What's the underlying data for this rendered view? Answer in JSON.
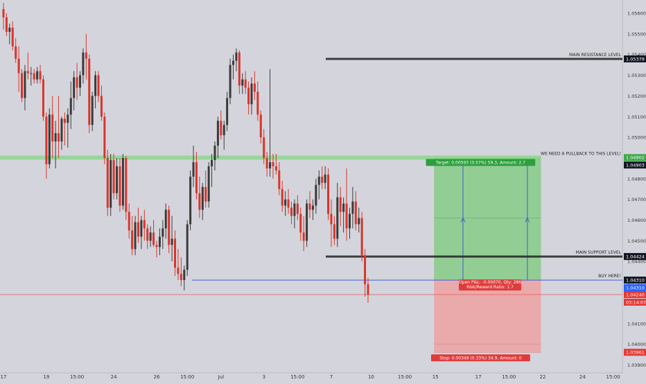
{
  "chart_data": {
    "type": "candlestick",
    "symbol_note": "",
    "ylim": [
      1.0385,
      1.0565
    ],
    "y_ticks": [
      1.056,
      1.055,
      1.054,
      1.053,
      1.052,
      1.051,
      1.05,
      1.049,
      1.048,
      1.047,
      1.046,
      1.045,
      1.044,
      1.043,
      1.042,
      1.041,
      1.04,
      1.039
    ],
    "y_tick_labels": [
      "1.05600",
      "1.05500",
      "1.05400",
      "1.05300",
      "1.05200",
      "1.05100",
      "1.05000",
      "1.04900",
      "1.04800",
      "1.04700",
      "1.04600",
      "1.04500",
      "1.04400",
      "1.04300",
      "1.04200",
      "1.04100",
      "1.04000",
      "1.03900"
    ],
    "x_tick_labels": [
      {
        "label": "17",
        "bar": 0
      },
      {
        "label": "19",
        "bar": 14
      },
      {
        "label": "15:00",
        "bar": 24
      },
      {
        "label": "24",
        "bar": 36
      },
      {
        "label": "26",
        "bar": 50
      },
      {
        "label": "15:00",
        "bar": 60
      },
      {
        "label": "Jul",
        "bar": 71
      },
      {
        "label": "3",
        "bar": 85
      },
      {
        "label": "15:00",
        "bar": 96
      },
      {
        "label": "7",
        "bar": 107
      },
      {
        "label": "10",
        "bar": 120
      },
      {
        "label": "15:00",
        "bar": 131
      },
      {
        "label": "15",
        "bar": 141
      },
      {
        "label": "17",
        "bar": 155
      },
      {
        "label": "15:00",
        "bar": 165
      },
      {
        "label": "22",
        "bar": 176
      },
      {
        "label": "24",
        "bar": 189
      },
      {
        "label": "15:00",
        "bar": 199
      }
    ],
    "candles": [
      [
        1.0562,
        1.0565,
        1.0552,
        1.0558
      ],
      [
        1.0558,
        1.056,
        1.0549,
        1.0551
      ],
      [
        1.0551,
        1.0555,
        1.0545,
        1.0553
      ],
      [
        1.0553,
        1.0556,
        1.0542,
        1.0544
      ],
      [
        1.0544,
        1.0548,
        1.0536,
        1.0538
      ],
      [
        1.0538,
        1.0544,
        1.0522,
        1.0531
      ],
      [
        1.0531,
        1.0533,
        1.0517,
        1.0519
      ],
      [
        1.0519,
        1.0535,
        1.0513,
        1.0532
      ],
      [
        1.0532,
        1.0541,
        1.0528,
        1.0531
      ],
      [
        1.0531,
        1.0534,
        1.0525,
        1.0531
      ],
      [
        1.0531,
        1.0533,
        1.0526,
        1.0528
      ],
      [
        1.0528,
        1.0534,
        1.0526,
        1.0532
      ],
      [
        1.0532,
        1.0535,
        1.0526,
        1.0528
      ],
      [
        1.0528,
        1.053,
        1.0508,
        1.051
      ],
      [
        1.051,
        1.0512,
        1.048,
        1.0487
      ],
      [
        1.0487,
        1.0514,
        1.0485,
        1.0511
      ],
      [
        1.0511,
        1.052,
        1.049,
        1.0498
      ],
      [
        1.0498,
        1.0508,
        1.0485,
        1.0502
      ],
      [
        1.0502,
        1.052,
        1.049,
        1.0498
      ],
      [
        1.0498,
        1.051,
        1.0494,
        1.0509
      ],
      [
        1.0509,
        1.0512,
        1.0496,
        1.0507
      ],
      [
        1.0507,
        1.0514,
        1.0495,
        1.0511
      ],
      [
        1.0511,
        1.0527,
        1.0504,
        1.0519
      ],
      [
        1.0519,
        1.0532,
        1.0513,
        1.0529
      ],
      [
        1.0529,
        1.0536,
        1.0518,
        1.0524
      ],
      [
        1.0524,
        1.0532,
        1.052,
        1.053
      ],
      [
        1.053,
        1.0543,
        1.0526,
        1.0541
      ],
      [
        1.0541,
        1.055,
        1.0528,
        1.0538
      ],
      [
        1.0538,
        1.054,
        1.0502,
        1.0506
      ],
      [
        1.0506,
        1.0522,
        1.0503,
        1.052
      ],
      [
        1.052,
        1.0532,
        1.0514,
        1.053
      ],
      [
        1.053,
        1.0532,
        1.0517,
        1.052
      ],
      [
        1.052,
        1.0525,
        1.0508,
        1.051
      ],
      [
        1.051,
        1.0512,
        1.0487,
        1.049
      ],
      [
        1.049,
        1.0494,
        1.0462,
        1.0466
      ],
      [
        1.0466,
        1.0492,
        1.0462,
        1.0489
      ],
      [
        1.0489,
        1.0492,
        1.047,
        1.0473
      ],
      [
        1.0473,
        1.049,
        1.047,
        1.0486
      ],
      [
        1.0486,
        1.049,
        1.0464,
        1.0467
      ],
      [
        1.0467,
        1.0492,
        1.0465,
        1.049
      ],
      [
        1.049,
        1.0491,
        1.046,
        1.0464
      ],
      [
        1.0464,
        1.0468,
        1.0451,
        1.0455
      ],
      [
        1.0455,
        1.0462,
        1.0443,
        1.0446
      ],
      [
        1.0446,
        1.0462,
        1.0443,
        1.0459
      ],
      [
        1.0459,
        1.0466,
        1.0449,
        1.0452
      ],
      [
        1.0452,
        1.0462,
        1.0446,
        1.046
      ],
      [
        1.046,
        1.0465,
        1.045,
        1.0456
      ],
      [
        1.0456,
        1.0458,
        1.0446,
        1.045
      ],
      [
        1.045,
        1.0457,
        1.0447,
        1.0454
      ],
      [
        1.0454,
        1.046,
        1.0447,
        1.0448
      ],
      [
        1.0448,
        1.045,
        1.0442,
        1.0447
      ],
      [
        1.0447,
        1.0456,
        1.0443,
        1.0452
      ],
      [
        1.0452,
        1.046,
        1.0446,
        1.0456
      ],
      [
        1.0456,
        1.0468,
        1.0451,
        1.0465
      ],
      [
        1.0465,
        1.0467,
        1.0444,
        1.0448
      ],
      [
        1.0448,
        1.0462,
        1.044,
        1.0451
      ],
      [
        1.0451,
        1.0455,
        1.0433,
        1.0437
      ],
      [
        1.0437,
        1.0446,
        1.0431,
        1.0434
      ],
      [
        1.0434,
        1.0442,
        1.0428,
        1.0431
      ],
      [
        1.0431,
        1.0438,
        1.0426,
        1.0436
      ],
      [
        1.0436,
        1.046,
        1.0433,
        1.0458
      ],
      [
        1.0458,
        1.0484,
        1.0455,
        1.0481
      ],
      [
        1.0481,
        1.0496,
        1.0476,
        1.0488
      ],
      [
        1.0488,
        1.0493,
        1.047,
        1.0473
      ],
      [
        1.0473,
        1.0481,
        1.0461,
        1.0465
      ],
      [
        1.0465,
        1.0478,
        1.046,
        1.0476
      ],
      [
        1.0476,
        1.0484,
        1.0466,
        1.0469
      ],
      [
        1.0469,
        1.0488,
        1.0466,
        1.0486
      ],
      [
        1.0486,
        1.0492,
        1.0476,
        1.0489
      ],
      [
        1.0489,
        1.0498,
        1.0484,
        1.0496
      ],
      [
        1.0496,
        1.051,
        1.049,
        1.0508
      ],
      [
        1.0508,
        1.0513,
        1.0499,
        1.0501
      ],
      [
        1.0501,
        1.0508,
        1.0494,
        1.0506
      ],
      [
        1.0506,
        1.0522,
        1.0503,
        1.0519
      ],
      [
        1.0519,
        1.0538,
        1.0516,
        1.0535
      ],
      [
        1.0535,
        1.054,
        1.0528,
        1.0537
      ],
      [
        1.0537,
        1.0543,
        1.0532,
        1.0541
      ],
      [
        1.0541,
        1.0542,
        1.0521,
        1.0525
      ],
      [
        1.0525,
        1.0531,
        1.0521,
        1.0528
      ],
      [
        1.0528,
        1.0532,
        1.0521,
        1.0524
      ],
      [
        1.0524,
        1.0527,
        1.0511,
        1.0516
      ],
      [
        1.0516,
        1.0529,
        1.0511,
        1.0526
      ],
      [
        1.0526,
        1.0532,
        1.0518,
        1.0522
      ],
      [
        1.0522,
        1.0527,
        1.0508,
        1.0511
      ],
      [
        1.0511,
        1.0513,
        1.0497,
        1.05
      ],
      [
        1.05,
        1.0504,
        1.0487,
        1.049
      ],
      [
        1.049,
        1.0493,
        1.0481,
        1.0485
      ],
      [
        1.0485,
        1.0533,
        1.0481,
        1.0488
      ],
      [
        1.0488,
        1.0492,
        1.048,
        1.0486
      ],
      [
        1.0486,
        1.0492,
        1.0482,
        1.0484
      ],
      [
        1.0484,
        1.0488,
        1.0472,
        1.0475
      ],
      [
        1.0475,
        1.0479,
        1.0464,
        1.0467
      ],
      [
        1.0467,
        1.0474,
        1.0462,
        1.047
      ],
      [
        1.047,
        1.0475,
        1.0463,
        1.0466
      ],
      [
        1.0466,
        1.0469,
        1.0458,
        1.0462
      ],
      [
        1.0462,
        1.047,
        1.0456,
        1.0468
      ],
      [
        1.0468,
        1.0472,
        1.046,
        1.0463
      ],
      [
        1.0463,
        1.0466,
        1.045,
        1.0454
      ],
      [
        1.0454,
        1.0462,
        1.0445,
        1.045
      ],
      [
        1.045,
        1.047,
        1.0447,
        1.0468
      ],
      [
        1.0468,
        1.0474,
        1.0461,
        1.0465
      ],
      [
        1.0465,
        1.047,
        1.046,
        1.0467
      ],
      [
        1.0467,
        1.048,
        1.0463,
        1.0477
      ],
      [
        1.0477,
        1.0484,
        1.047,
        1.0481
      ],
      [
        1.0481,
        1.0486,
        1.0475,
        1.0478
      ],
      [
        1.0478,
        1.0486,
        1.0475,
        1.0482
      ],
      [
        1.0482,
        1.0485,
        1.046,
        1.0463
      ],
      [
        1.0463,
        1.047,
        1.0447,
        1.0458
      ],
      [
        1.0458,
        1.0462,
        1.0448,
        1.0451
      ],
      [
        1.0451,
        1.0478,
        1.0447,
        1.0471
      ],
      [
        1.0471,
        1.0476,
        1.0457,
        1.0464
      ],
      [
        1.0464,
        1.0471,
        1.0454,
        1.0468
      ],
      [
        1.0468,
        1.0485,
        1.045,
        1.0456
      ],
      [
        1.0456,
        1.0466,
        1.0451,
        1.0463
      ],
      [
        1.0463,
        1.0476,
        1.0456,
        1.0469
      ],
      [
        1.0469,
        1.0474,
        1.0455,
        1.0458
      ],
      [
        1.0458,
        1.0466,
        1.0454,
        1.0461
      ],
      [
        1.0461,
        1.0464,
        1.044,
        1.0443
      ],
      [
        1.0443,
        1.0446,
        1.0423,
        1.0429
      ],
      [
        1.0429,
        1.0432,
        1.042,
        1.0424
      ]
    ],
    "levels": [
      {
        "name": "MAIN RESISTANCE LEVEL",
        "value": 1.05379
      },
      {
        "name": "WE NEED A PULLBACK TO THIS LEVEL!",
        "value": 1.04902
      },
      {
        "name": "MAIN SUPPORT LEVEL",
        "value": 1.04424
      },
      {
        "name": "BUY HERE!",
        "value": 1.0431
      }
    ],
    "price_tags": [
      {
        "text": "1.05600",
        "value": 1.056,
        "kind": "tick"
      },
      {
        "text": "1.05379",
        "value": 1.05379,
        "kind": "dark"
      },
      {
        "text": "1.04902",
        "value": 1.04902,
        "kind": "green"
      },
      {
        "text": "1.04903",
        "value": 1.04903,
        "kind": "dark"
      },
      {
        "text": "1.04424",
        "value": 1.04424,
        "kind": "dark"
      },
      {
        "text": "1.04310",
        "value": 1.0431,
        "kind": "dark"
      },
      {
        "text": "1.04310",
        "value": 1.0431,
        "kind": "blue"
      },
      {
        "text": "1.04240",
        "value": 1.0424,
        "kind": "red"
      },
      {
        "text": "03:14:07",
        "value": 1.0424,
        "kind": "red"
      },
      {
        "text": "1.03961",
        "value": 1.03961,
        "kind": "red"
      }
    ],
    "position": {
      "entry": 1.0431,
      "target": 1.04902,
      "stop": 1.03961,
      "start_bar": 141,
      "end_bar": 175,
      "target_label": "Target: 0.00593 (0.57%) 59.3, Amount: 2.7",
      "stop_label": "Stop: 0.00349 (0.33%) 34.9, Amount: 0",
      "open_label": "Open P&L: -0.00070, Qty: 286",
      "ratio_label": "Risk/Reward Ratio: 1.7"
    },
    "current_price": 1.0424,
    "bars_visible": 205
  },
  "colors": {
    "background": "#d4d5dc",
    "up": "#3a3a3a",
    "down": "#d9342b",
    "target_zone": "#8ecc8f",
    "stop_zone": "#eba6a6",
    "blue_line": "#3e5fd6",
    "green_level": "#7fd67f",
    "red_line": "#e06060",
    "axis_text": "#333333"
  }
}
